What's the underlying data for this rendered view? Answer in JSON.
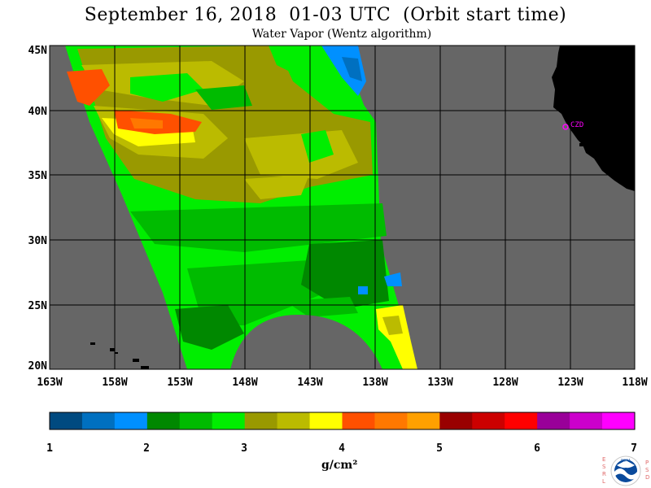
{
  "header": {
    "title": "September 16, 2018  01-03 UTC  (Orbit start time)",
    "subtitle": "Water Vapor (Wentz algorithm)"
  },
  "map": {
    "lat_labels": [
      "45N",
      "40N",
      "35N",
      "30N",
      "25N",
      "20N"
    ],
    "lon_labels": [
      "163W",
      "158W",
      "153W",
      "148W",
      "143W",
      "138W",
      "133W",
      "128W",
      "123W",
      "118W"
    ],
    "station_label": "CZD",
    "colors": {
      "land": "#000000",
      "no_data": "#666666",
      "grid": "#000000",
      "station": "#ff00ff"
    }
  },
  "colorbar": {
    "tick_labels": [
      "1",
      "2",
      "3",
      "4",
      "5",
      "6",
      "7"
    ],
    "unit_label": "g/cm²",
    "colors": [
      "#004a80",
      "#0070c0",
      "#0090ff",
      "#008800",
      "#00bb00",
      "#00ee00",
      "#999900",
      "#bbbb00",
      "#ffff00",
      "#ff5000",
      "#ff7800",
      "#ffa000",
      "#990000",
      "#cc0000",
      "#ff0000",
      "#990099",
      "#cc00cc",
      "#ff00ff"
    ]
  },
  "logo": {
    "left_letters": "ESRL",
    "right_letters": "PSD",
    "text": "NOAA"
  }
}
